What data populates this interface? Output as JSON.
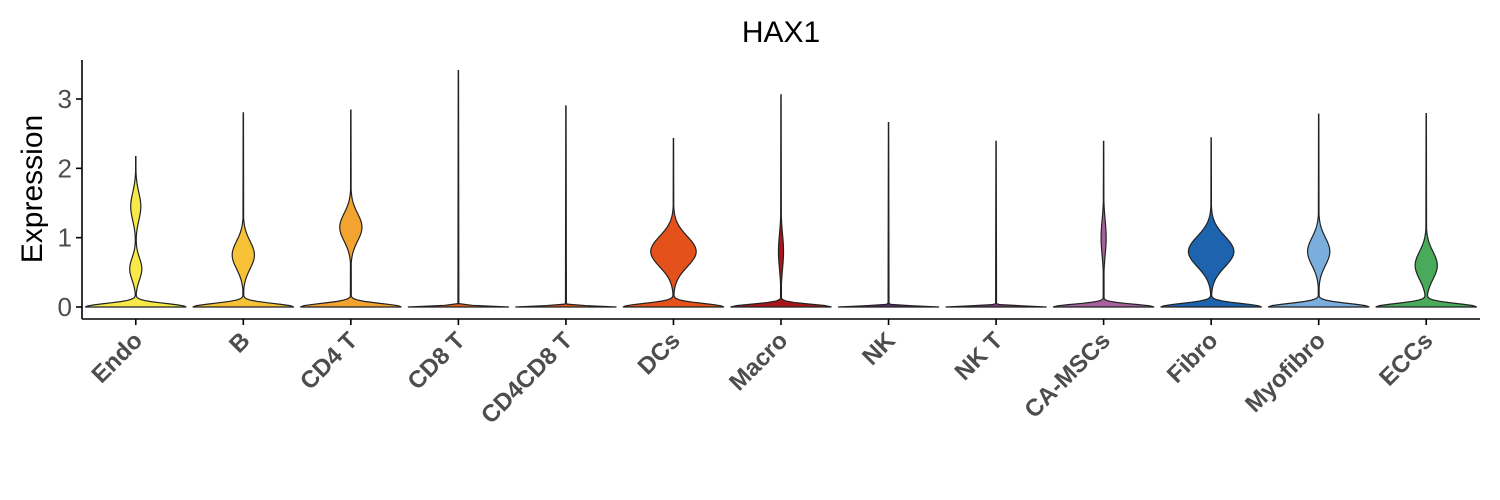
{
  "chart_data": {
    "type": "violin",
    "title": "HAX1",
    "xlabel": "",
    "ylabel": "Expression",
    "ylim": [
      -0.15,
      3.55
    ],
    "yticks": [
      0,
      1,
      2,
      3
    ],
    "grid": false,
    "legend": "none",
    "categories": [
      "Endo",
      "B",
      "CD4 T",
      "CD8 T",
      "CD4CD8 T",
      "DCs",
      "Macro",
      "NK",
      "NK T",
      "CA-MSCs",
      "Fibro",
      "Myofibro",
      "ECCs"
    ],
    "colors": [
      "#f7e948",
      "#f7c238",
      "#f2a330",
      "#e3601e",
      "#e8581d",
      "#e5511a",
      "#a8161a",
      "#5b2c6f",
      "#7a3e7a",
      "#a5619c",
      "#1d63ad",
      "#7aaedc",
      "#4aaa5c"
    ],
    "max_values": [
      2.17,
      2.8,
      2.84,
      3.41,
      2.9,
      2.43,
      3.06,
      2.66,
      2.39,
      2.39,
      2.44,
      2.78,
      2.79
    ],
    "density_peaks": [
      {
        "main": 0.0,
        "secondary": [
          0.55,
          1.45
        ],
        "shape": "low-medium"
      },
      {
        "main": 0.0,
        "secondary": [
          0.75
        ],
        "shape": "medium"
      },
      {
        "main": 0.0,
        "secondary": [
          1.15
        ],
        "shape": "medium"
      },
      {
        "main": 0.0,
        "secondary": [],
        "shape": "flat"
      },
      {
        "main": 0.0,
        "secondary": [],
        "shape": "flat"
      },
      {
        "main": 0.0,
        "secondary": [
          0.8
        ],
        "shape": "high"
      },
      {
        "main": 0.0,
        "secondary": [
          0.8
        ],
        "shape": "thin"
      },
      {
        "main": 0.0,
        "secondary": [],
        "shape": "flat"
      },
      {
        "main": 0.0,
        "secondary": [],
        "shape": "flat"
      },
      {
        "main": 0.0,
        "secondary": [
          1.0
        ],
        "shape": "thin"
      },
      {
        "main": 0.0,
        "secondary": [
          0.8
        ],
        "shape": "high"
      },
      {
        "main": 0.0,
        "secondary": [
          0.8
        ],
        "shape": "medium"
      },
      {
        "main": 0.0,
        "secondary": [
          0.6
        ],
        "shape": "medium"
      }
    ]
  }
}
